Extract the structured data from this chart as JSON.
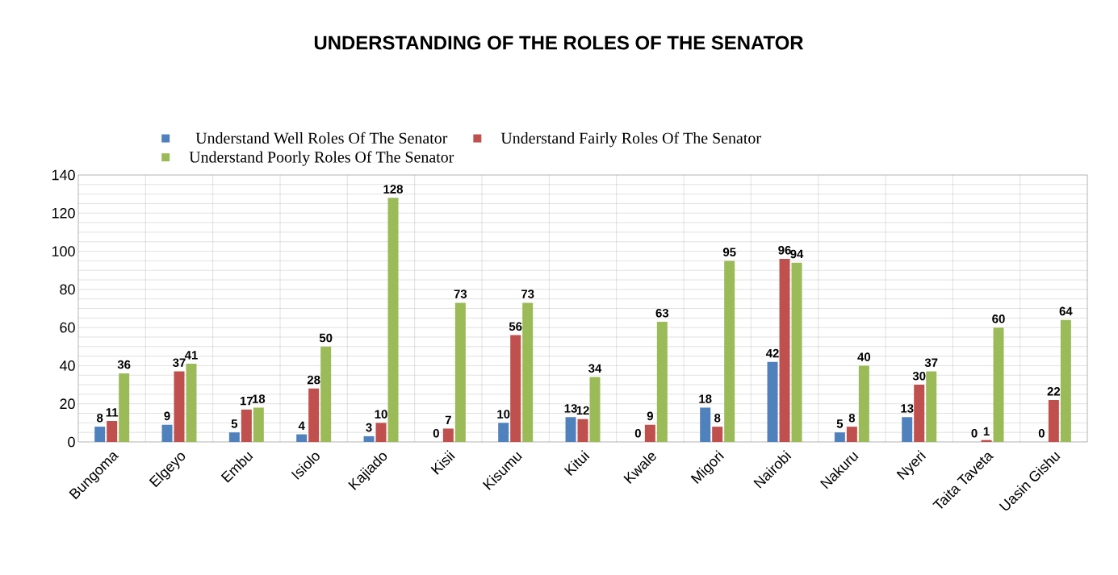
{
  "chart_data": {
    "type": "bar",
    "title": "UNDERSTANDING OF THE ROLES OF THE SENATOR",
    "categories": [
      "Bungoma",
      "Elgeyo",
      "Embu",
      "Isiolo",
      "Kajiado",
      "Kisii",
      "Kisumu",
      "Kitui",
      "Kwale",
      "Migori",
      "Nairobi",
      "Nakuru",
      "Nyeri",
      "Taita Taveta",
      "Uasin Gishu"
    ],
    "series": [
      {
        "name": "Understand Well Roles Of The Senator",
        "color": "#4f81bd",
        "values": [
          8,
          9,
          5,
          4,
          3,
          0,
          10,
          13,
          0,
          18,
          42,
          5,
          13,
          0,
          0
        ]
      },
      {
        "name": "Understand Fairly Roles Of The Senator",
        "color": "#c0504d",
        "values": [
          11,
          37,
          17,
          28,
          10,
          7,
          56,
          12,
          9,
          8,
          96,
          8,
          30,
          1,
          22
        ]
      },
      {
        "name": "Understand Poorly Roles Of The Senator",
        "color": "#9bbb59",
        "values": [
          36,
          41,
          18,
          50,
          128,
          73,
          73,
          34,
          63,
          95,
          94,
          40,
          37,
          60,
          64
        ]
      }
    ],
    "ylim": [
      0,
      140
    ],
    "yticks": [
      0,
      20,
      40,
      60,
      80,
      100,
      120,
      140
    ],
    "grid": true,
    "legend": "top",
    "data_labels": true
  }
}
